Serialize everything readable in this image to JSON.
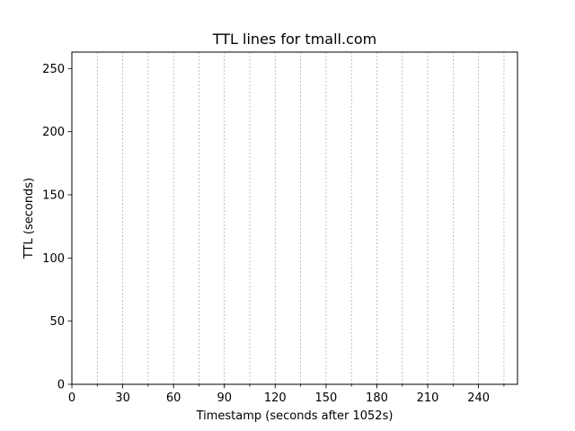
{
  "chart_data": {
    "type": "line",
    "title": "TTL lines for tmall.com",
    "xlabel": "Timestamp (seconds after 1052s)",
    "ylabel": "TTL (seconds)",
    "xlim": [
      0,
      263
    ],
    "ylim": [
      0,
      263
    ],
    "x_ticks": [
      0,
      30,
      60,
      90,
      120,
      150,
      180,
      210,
      240
    ],
    "x_tick_labels": [
      "0",
      "30",
      "60",
      "90",
      "120",
      "150",
      "180",
      "210",
      "240"
    ],
    "y_ticks": [
      0,
      50,
      100,
      150,
      200,
      250
    ],
    "y_tick_labels": [
      "0",
      "50",
      "100",
      "150",
      "200",
      "250"
    ],
    "vertical_lines": [
      15,
      30,
      45,
      60,
      75,
      90,
      105,
      120,
      135,
      150,
      165,
      180,
      195,
      210,
      225,
      240,
      255
    ],
    "vertical_line_style": "dashed",
    "vertical_line_color": "#b0b0b0",
    "grid": false,
    "series": []
  }
}
